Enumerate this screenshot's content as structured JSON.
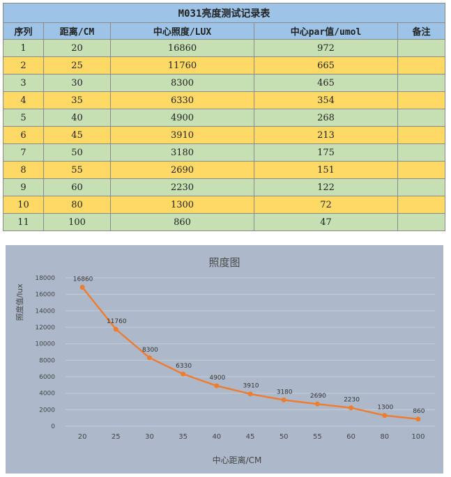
{
  "table": {
    "title": "M031亮度测试记录表",
    "headers": [
      "序列",
      "距离/CM",
      "中心照度/LUX",
      "中心par值/umol",
      "备注"
    ],
    "rows": [
      [
        "1",
        "20",
        "16860",
        "972",
        ""
      ],
      [
        "2",
        "25",
        "11760",
        "665",
        ""
      ],
      [
        "3",
        "30",
        "8300",
        "465",
        ""
      ],
      [
        "4",
        "35",
        "6330",
        "354",
        ""
      ],
      [
        "5",
        "40",
        "4900",
        "268",
        ""
      ],
      [
        "6",
        "45",
        "3910",
        "213",
        ""
      ],
      [
        "7",
        "50",
        "3180",
        "175",
        ""
      ],
      [
        "8",
        "55",
        "2690",
        "151",
        ""
      ],
      [
        "9",
        "60",
        "2230",
        "122",
        ""
      ],
      [
        "10",
        "80",
        "1300",
        "72",
        ""
      ],
      [
        "11",
        "100",
        "860",
        "47",
        ""
      ]
    ]
  },
  "chart_data": {
    "type": "line",
    "title": "照度图",
    "xlabel": "中心距离/CM",
    "ylabel": "照度值/lux",
    "categories": [
      "20",
      "25",
      "30",
      "35",
      "40",
      "45",
      "50",
      "55",
      "60",
      "80",
      "100"
    ],
    "values": [
      16860,
      11760,
      8300,
      6330,
      4900,
      3910,
      3180,
      2690,
      2230,
      1300,
      860
    ],
    "ylim": [
      0,
      18000
    ],
    "yticks": [
      0,
      2000,
      4000,
      6000,
      8000,
      10000,
      12000,
      14000,
      16000,
      18000
    ],
    "grid": true,
    "data_labels": true,
    "colors": {
      "line": "#ed7d31",
      "background": "#adb9ca",
      "grid": "#c3ccd9",
      "table_header": "#9dc3e6",
      "row_green": "#c6e0b4",
      "row_yellow": "#ffd966"
    }
  }
}
